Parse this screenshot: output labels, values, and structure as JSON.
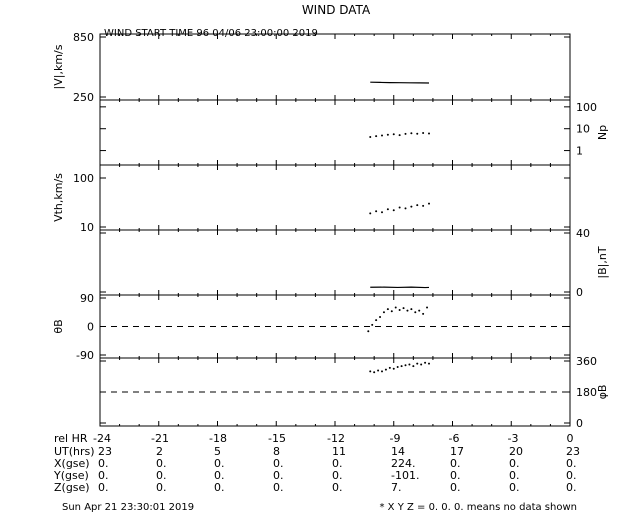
{
  "title": "WIND DATA",
  "start_time": "WIND START TIME  96 04/06 23:00:00 2019",
  "footer_left": "Sun Apr 21 23:30:01 2019",
  "footer_right": "* X Y Z = 0. 0. 0. means no data shown",
  "bottom_table": {
    "rows": [
      {
        "label": "rel HR",
        "values": [
          "-24",
          "-21",
          "-18",
          "-15",
          "-12",
          "-9",
          "-6",
          "-3",
          "0"
        ]
      },
      {
        "label": "UT(hrs)",
        "values": [
          "23",
          "2",
          "5",
          "8",
          "11",
          "14",
          "17",
          "20",
          "23"
        ]
      },
      {
        "label": "X(gse)",
        "values": [
          "0.",
          "0.",
          "0.",
          "0.",
          "0.",
          "224.",
          "0.",
          "0.",
          "0."
        ]
      },
      {
        "label": "Y(gse)",
        "values": [
          "0.",
          "0.",
          "0.",
          "0.",
          "0.",
          "-101.",
          "0.",
          "0.",
          "0."
        ]
      },
      {
        "label": "Z(gse)",
        "values": [
          "0.",
          "0.",
          "0.",
          "0.",
          "0.",
          "7.",
          "0.",
          "0.",
          "0."
        ]
      }
    ]
  },
  "chart_data": [
    {
      "type": "line",
      "panel": "speed",
      "ylabel": "|V|,km/s",
      "ylim": [
        250,
        850
      ],
      "yticks": [
        "850",
        "250"
      ],
      "x_range": [
        -24,
        0
      ],
      "series": [
        {
          "x": [
            -10.2,
            -9.7,
            -9.2,
            -8.7,
            -8.2,
            -7.7,
            -7.2
          ],
          "values": [
            398,
            396,
            394,
            393,
            392,
            391,
            390
          ]
        }
      ]
    },
    {
      "type": "scatter",
      "panel": "density",
      "ylabel": "Np",
      "scale": "log",
      "ylim": [
        0.3,
        150
      ],
      "yticks": [
        "100",
        "10",
        "1"
      ],
      "x_range": [
        -24,
        0
      ],
      "series": [
        {
          "x": [
            -10.2,
            -9.9,
            -9.6,
            -9.3,
            -9.0,
            -8.7,
            -8.4,
            -8.1,
            -7.8,
            -7.5,
            -7.2
          ],
          "values": [
            4.2,
            4.6,
            4.9,
            5.3,
            5.6,
            5.1,
            5.8,
            6.2,
            5.9,
            6.4,
            6.0
          ]
        }
      ]
    },
    {
      "type": "scatter",
      "panel": "thermal-speed",
      "ylabel": "Vth,km/s",
      "scale": "log",
      "ylim": [
        10,
        160
      ],
      "yticks": [
        "100",
        "10"
      ],
      "x_range": [
        -24,
        0
      ],
      "series": [
        {
          "x": [
            -10.2,
            -9.9,
            -9.6,
            -9.3,
            -9.0,
            -8.7,
            -8.4,
            -8.1,
            -7.8,
            -7.5,
            -7.2
          ],
          "values": [
            19,
            21,
            20,
            23,
            22,
            25,
            24,
            26,
            28,
            27,
            30
          ]
        }
      ]
    },
    {
      "type": "line",
      "panel": "field-magnitude",
      "ylabel": "|B|,nT",
      "ylim": [
        0,
        40
      ],
      "yticks": [
        "40",
        "0"
      ],
      "x_range": [
        -24,
        0
      ],
      "series": [
        {
          "x": [
            -10.2,
            -9.5,
            -8.8,
            -8.1,
            -7.4,
            -7.2
          ],
          "values": [
            3.2,
            3.3,
            3.1,
            3.3,
            3.0,
            3.1
          ]
        }
      ]
    },
    {
      "type": "scatter",
      "panel": "theta",
      "ylabel": "θB",
      "ylim": [
        -90,
        90
      ],
      "yticks": [
        "90",
        "0",
        "-90"
      ],
      "reference_line": 0,
      "x_range": [
        -24,
        0
      ],
      "series": [
        {
          "x": [
            -10.3,
            -10.1,
            -9.9,
            -9.7,
            -9.5,
            -9.3,
            -9.1,
            -8.9,
            -8.7,
            -8.5,
            -8.3,
            -8.1,
            -7.9,
            -7.7,
            -7.5,
            -7.3
          ],
          "values": [
            -15,
            5,
            20,
            30,
            45,
            55,
            48,
            60,
            52,
            58,
            50,
            55,
            45,
            50,
            40,
            60
          ]
        }
      ]
    },
    {
      "type": "scatter",
      "panel": "phi",
      "ylabel": "φB",
      "ylim": [
        0,
        360
      ],
      "yticks": [
        "360",
        "180",
        "0"
      ],
      "reference_line": 180,
      "x_range": [
        -24,
        0
      ],
      "series": [
        {
          "x": [
            -10.2,
            -10.0,
            -9.8,
            -9.6,
            -9.4,
            -9.2,
            -9.0,
            -8.8,
            -8.6,
            -8.4,
            -8.2,
            -8.0,
            -7.8,
            -7.6,
            -7.4,
            -7.2
          ],
          "values": [
            300,
            295,
            305,
            300,
            310,
            320,
            315,
            325,
            330,
            335,
            340,
            330,
            345,
            340,
            350,
            345
          ]
        }
      ]
    }
  ]
}
